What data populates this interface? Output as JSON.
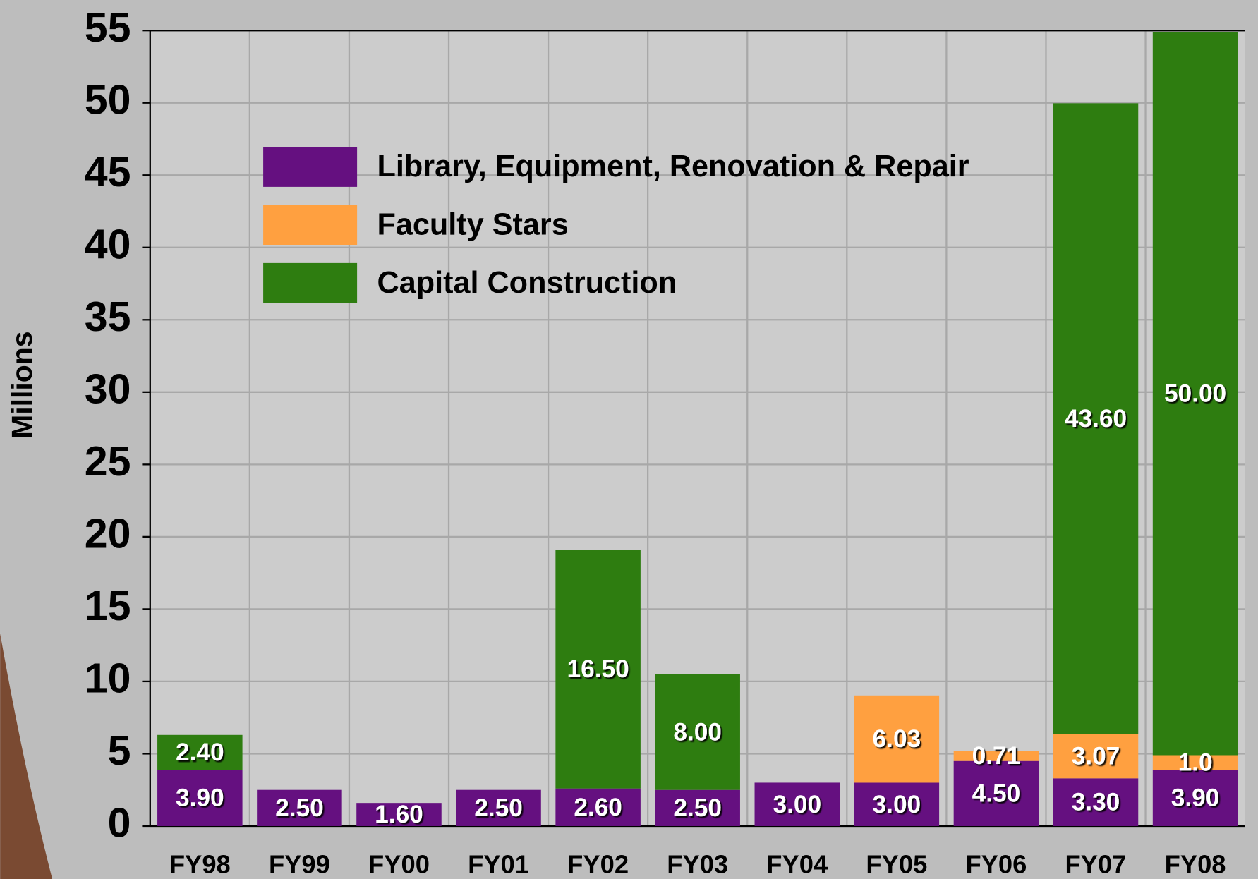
{
  "chart_data": {
    "type": "stacked_bar",
    "y_label": "Millions",
    "categories": [
      "FY98",
      "FY99",
      "FY00",
      "FY01",
      "FY02",
      "FY03",
      "FY04",
      "FY05",
      "FY06",
      "FY07",
      "FY08"
    ],
    "series": [
      {
        "name": "Library, Equipment, Renovation & Repair",
        "color": "#651080",
        "values": [
          3.9,
          2.5,
          1.6,
          2.5,
          2.6,
          2.5,
          3.0,
          3.0,
          4.5,
          3.3,
          3.9
        ],
        "value_labels": [
          "3.90",
          "2.50",
          "1.60",
          "2.50",
          "2.60",
          "2.50",
          "3.00",
          "3.00",
          "4.50",
          "3.30",
          "3.90"
        ]
      },
      {
        "name": "Faculty Stars",
        "color": "#ffa040",
        "values": [
          null,
          null,
          null,
          null,
          null,
          null,
          null,
          6.03,
          0.71,
          3.07,
          1.0
        ],
        "value_labels": [
          null,
          null,
          null,
          null,
          null,
          null,
          null,
          "6.03",
          "0.71",
          "3.07",
          "1.0"
        ]
      },
      {
        "name": "Capital Construction",
        "color": "#2e7d10",
        "values": [
          2.4,
          null,
          null,
          null,
          16.5,
          8.0,
          null,
          null,
          null,
          43.6,
          50.0
        ],
        "value_labels": [
          "2.40",
          null,
          null,
          null,
          "16.50",
          "8.00",
          null,
          null,
          null,
          "43.60",
          "50.00"
        ]
      }
    ],
    "ylim": [
      0,
      55
    ],
    "yticks": [
      0,
      5,
      10,
      15,
      20,
      25,
      30,
      35,
      40,
      45,
      50,
      55
    ],
    "grid": true
  }
}
